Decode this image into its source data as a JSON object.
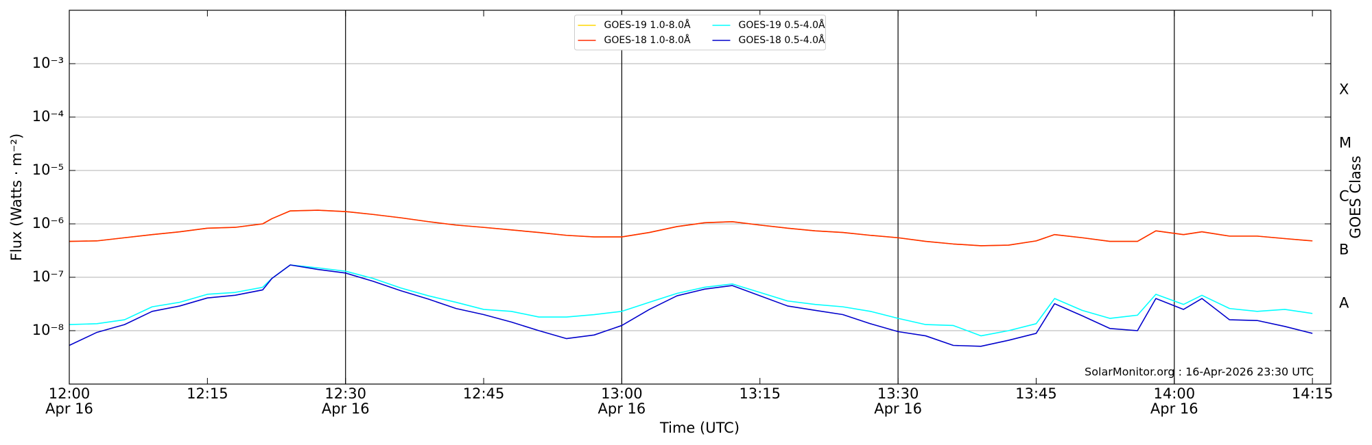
{
  "chart_data": {
    "type": "line",
    "xlabel": "Time (UTC)",
    "ylabel": "Flux (Watts · m⁻²)",
    "y2label": "GOES Class",
    "annotation": "SolarMonitor.org : 16-Apr-2026 23:30 UTC",
    "log_y": true,
    "grid": true,
    "legend": "upper center",
    "xlim": [
      "12:00",
      "14:17"
    ],
    "ylim": [
      1e-09,
      0.01
    ],
    "xticks": [
      "12:00",
      "12:15",
      "12:30",
      "12:45",
      "13:00",
      "13:15",
      "13:30",
      "13:45",
      "14:00",
      "14:15"
    ],
    "xtick_dates": [
      "Apr 16",
      null,
      "Apr 16",
      null,
      "Apr 16",
      null,
      "Apr 16",
      null,
      "Apr 16",
      null
    ],
    "yticks": [
      {
        "value": 1e-08,
        "label": "10⁻⁸"
      },
      {
        "value": 1e-07,
        "label": "10⁻⁷"
      },
      {
        "value": 1e-06,
        "label": "10⁻⁶"
      },
      {
        "value": 1e-05,
        "label": "10⁻⁵"
      },
      {
        "value": 0.0001,
        "label": "10⁻⁴"
      },
      {
        "value": 0.001,
        "label": "10⁻³"
      }
    ],
    "class_labels": [
      {
        "value": 3.2e-08,
        "label": "A"
      },
      {
        "value": 3.2e-07,
        "label": "B"
      },
      {
        "value": 3.2e-06,
        "label": "C"
      },
      {
        "value": 3.2e-05,
        "label": "M"
      },
      {
        "value": 0.00032,
        "label": "X"
      }
    ],
    "x": [
      "12:00",
      "12:03",
      "12:06",
      "12:09",
      "12:12",
      "12:15",
      "12:18",
      "12:21",
      "12:22",
      "12:24",
      "12:27",
      "12:30",
      "12:33",
      "12:36",
      "12:39",
      "12:42",
      "12:45",
      "12:48",
      "12:51",
      "12:54",
      "12:57",
      "13:00",
      "13:03",
      "13:06",
      "13:09",
      "13:12",
      "13:15",
      "13:18",
      "13:21",
      "13:24",
      "13:27",
      "13:30",
      "13:33",
      "13:36",
      "13:39",
      "13:42",
      "13:45",
      "13:47",
      "13:50",
      "13:53",
      "13:56",
      "13:58",
      "14:01",
      "14:03",
      "14:06",
      "14:09",
      "14:12",
      "14:15"
    ],
    "series": [
      {
        "name": "GOES-19 1.0-8.0Å",
        "color": "#ffd700",
        "values": [
          4.7e-07,
          4.8e-07,
          5.5e-07,
          6.3e-07,
          7.1e-07,
          8.3e-07,
          8.6e-07,
          1e-06,
          1.25e-06,
          1.75e-06,
          1.8e-06,
          1.7e-06,
          1.5e-06,
          1.3e-06,
          1.1e-06,
          9.5e-07,
          8.6e-07,
          7.7e-07,
          6.9e-07,
          6.1e-07,
          5.7e-07,
          5.7e-07,
          6.9e-07,
          8.9e-07,
          1.05e-06,
          1.1e-06,
          9.5e-07,
          8.3e-07,
          7.4e-07,
          6.9e-07,
          6.1e-07,
          5.5e-07,
          4.7e-07,
          4.2e-07,
          3.9e-07,
          4e-07,
          4.8e-07,
          6.3e-07,
          5.5e-07,
          4.7e-07,
          4.7e-07,
          7.4e-07,
          6.3e-07,
          7.1e-07,
          5.9e-07,
          5.9e-07,
          5.3e-07,
          4.8e-07
        ]
      },
      {
        "name": "GOES-18 1.0-8.0Å",
        "color": "#ff2a00",
        "values": [
          4.7e-07,
          4.8e-07,
          5.5e-07,
          6.3e-07,
          7.1e-07,
          8.3e-07,
          8.6e-07,
          1e-06,
          1.25e-06,
          1.75e-06,
          1.8e-06,
          1.7e-06,
          1.5e-06,
          1.3e-06,
          1.1e-06,
          9.5e-07,
          8.6e-07,
          7.7e-07,
          6.9e-07,
          6.1e-07,
          5.7e-07,
          5.7e-07,
          6.9e-07,
          8.9e-07,
          1.05e-06,
          1.1e-06,
          9.5e-07,
          8.3e-07,
          7.4e-07,
          6.9e-07,
          6.1e-07,
          5.5e-07,
          4.7e-07,
          4.2e-07,
          3.9e-07,
          4e-07,
          4.8e-07,
          6.3e-07,
          5.5e-07,
          4.7e-07,
          4.7e-07,
          7.4e-07,
          6.3e-07,
          7.1e-07,
          5.9e-07,
          5.9e-07,
          5.3e-07,
          4.8e-07
        ]
      },
      {
        "name": "GOES-19 0.5-4.0Å",
        "color": "#00ffff",
        "values": [
          1.3e-08,
          1.35e-08,
          1.6e-08,
          2.8e-08,
          3.4e-08,
          4.8e-08,
          5.2e-08,
          6.5e-08,
          9.5e-08,
          1.7e-07,
          1.5e-07,
          1.3e-07,
          9.5e-08,
          6.3e-08,
          4.5e-08,
          3.4e-08,
          2.5e-08,
          2.3e-08,
          1.8e-08,
          1.8e-08,
          2e-08,
          2.3e-08,
          3.4e-08,
          5e-08,
          6.5e-08,
          7.5e-08,
          5.2e-08,
          3.6e-08,
          3.1e-08,
          2.8e-08,
          2.3e-08,
          1.7e-08,
          1.3e-08,
          1.25e-08,
          8e-09,
          1e-08,
          1.35e-08,
          4e-08,
          2.4e-08,
          1.7e-08,
          1.95e-08,
          4.8e-08,
          3.1e-08,
          4.6e-08,
          2.6e-08,
          2.3e-08,
          2.5e-08,
          2.1e-08
        ]
      },
      {
        "name": "GOES-18 0.5-4.0Å",
        "color": "#0000cc",
        "values": [
          5.3e-09,
          9.3e-09,
          1.3e-08,
          2.3e-08,
          2.9e-08,
          4.1e-08,
          4.6e-08,
          5.8e-08,
          9.5e-08,
          1.7e-07,
          1.4e-07,
          1.2e-07,
          8.4e-08,
          5.6e-08,
          3.9e-08,
          2.6e-08,
          2e-08,
          1.45e-08,
          1e-08,
          7.1e-09,
          8.3e-09,
          1.25e-08,
          2.5e-08,
          4.5e-08,
          6e-08,
          7e-08,
          4.5e-08,
          2.9e-08,
          2.4e-08,
          2e-08,
          1.35e-08,
          9.6e-09,
          8e-09,
          5.3e-09,
          5.1e-09,
          6.6e-09,
          8.9e-09,
          3.2e-08,
          1.9e-08,
          1.1e-08,
          1e-08,
          4e-08,
          2.5e-08,
          4e-08,
          1.6e-08,
          1.55e-08,
          1.2e-08,
          8.9e-09
        ]
      }
    ]
  }
}
